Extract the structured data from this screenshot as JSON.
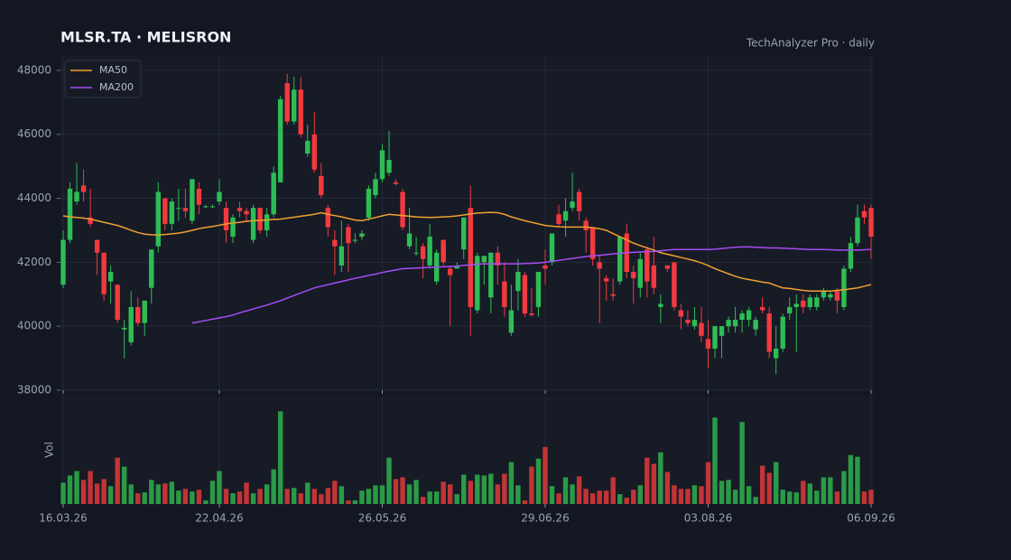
{
  "chart_data": {
    "type": "candlestick",
    "title": "MLSR.TA  ·  MELISRON",
    "subtitle": "TechAnalyzer Pro · daily",
    "volume_label": "Vol",
    "categories": [
      "16.03.26",
      null,
      null,
      null,
      null,
      null,
      null,
      null,
      null,
      null,
      null,
      null,
      null,
      null,
      null,
      null,
      null,
      null,
      null,
      null,
      null,
      null,
      null,
      "22.04.26",
      null,
      null,
      null,
      null,
      null,
      null,
      null,
      null,
      null,
      null,
      null,
      null,
      null,
      null,
      null,
      null,
      null,
      null,
      null,
      null,
      null,
      null,
      null,
      "26.05.26",
      null,
      null,
      null,
      null,
      null,
      null,
      null,
      null,
      null,
      null,
      null,
      null,
      null,
      null,
      null,
      null,
      null,
      null,
      null,
      null,
      null,
      null,
      null,
      "29.06.26",
      null,
      null,
      null,
      null,
      null,
      null,
      null,
      null,
      null,
      null,
      null,
      null,
      null,
      null,
      null,
      null,
      null,
      null,
      null,
      null,
      null,
      null,
      null,
      "03.08.26",
      null,
      null,
      null,
      null,
      null,
      null,
      null,
      null,
      null,
      null,
      null,
      null,
      null,
      null,
      null,
      null,
      null,
      null,
      null,
      null,
      null,
      null,
      null,
      "06.09.26"
    ],
    "open": [
      41300,
      42700,
      43900,
      44400,
      43400,
      42700,
      42300,
      41400,
      41300,
      39900,
      39500,
      40600,
      40100,
      41200,
      42500,
      44000,
      43200,
      43700,
      43700,
      43300,
      44300,
      43750,
      43750,
      43900,
      43700,
      42800,
      43700,
      43600,
      42700,
      43700,
      43000,
      43500,
      44500,
      47600,
      46400,
      47400,
      45400,
      46000,
      44700,
      43700,
      42700,
      41900,
      43100,
      42700,
      42800,
      43400,
      44100,
      44600,
      44800,
      44500,
      44200,
      42500,
      42300,
      42500,
      41900,
      41400,
      42700,
      41800,
      41800,
      42400,
      43700,
      40500,
      42000,
      40900,
      42300,
      41400,
      39800,
      41100,
      41600,
      40400,
      40600,
      41900,
      42000,
      43500,
      43300,
      43700,
      44200,
      43300,
      43100,
      42000,
      41500,
      41000,
      41400,
      42900,
      41700,
      41200,
      42400,
      41900,
      40600,
      41900,
      42000,
      40500,
      40200,
      40000,
      40100,
      39600,
      39300,
      39700,
      40000,
      40000,
      40200,
      40200,
      39900,
      40600,
      40400,
      39000,
      39300,
      40400,
      40600,
      40800,
      40600,
      40600,
      40900,
      40900,
      41100,
      40600,
      41800,
      42600,
      43600,
      43700
    ],
    "high": [
      43000,
      44500,
      45100,
      44900,
      44300,
      42700,
      42300,
      41900,
      41300,
      40200,
      41100,
      40900,
      40800,
      42400,
      44500,
      44000,
      44000,
      44300,
      44300,
      44600,
      44500,
      43800,
      43800,
      44600,
      43900,
      43500,
      43900,
      43700,
      43800,
      43700,
      43700,
      45000,
      47200,
      47900,
      47800,
      47800,
      46300,
      46700,
      45100,
      43800,
      43000,
      43300,
      43200,
      42900,
      43000,
      44400,
      44800,
      45700,
      46100,
      44600,
      44300,
      43700,
      42800,
      42600,
      43200,
      42400,
      42700,
      41900,
      42000,
      43400,
      44400,
      42300,
      42200,
      42300,
      42500,
      42000,
      41300,
      42100,
      41700,
      41200,
      41700,
      42400,
      42900,
      43800,
      44000,
      44800,
      44300,
      43400,
      43100,
      42200,
      41600,
      41500,
      42800,
      43200,
      41900,
      42300,
      42500,
      42800,
      41000,
      41900,
      42000,
      40700,
      40500,
      40600,
      40600,
      40200,
      40000,
      40000,
      40300,
      40600,
      40500,
      40600,
      40300,
      40900,
      40600,
      40000,
      40400,
      40900,
      41000,
      41000,
      41000,
      41000,
      41200,
      41100,
      41200,
      41900,
      42800,
      43800,
      43800,
      43800
    ],
    "low": [
      41200,
      42600,
      43800,
      43900,
      43100,
      41600,
      40800,
      40700,
      40100,
      39000,
      39400,
      40000,
      39700,
      40700,
      42300,
      43000,
      43000,
      43300,
      43400,
      43200,
      43500,
      43700,
      43700,
      43800,
      42600,
      42600,
      43400,
      43300,
      42600,
      42900,
      42800,
      43400,
      44500,
      46300,
      46300,
      45900,
      45300,
      44800,
      44000,
      42800,
      41600,
      41700,
      41700,
      42600,
      42700,
      43300,
      44000,
      44500,
      44700,
      44400,
      43000,
      42400,
      42200,
      41500,
      41800,
      41300,
      41900,
      40000,
      41800,
      42100,
      39700,
      40400,
      41300,
      40400,
      41300,
      40300,
      39700,
      40500,
      40300,
      40300,
      40300,
      41300,
      41900,
      43100,
      42800,
      43600,
      43300,
      42300,
      41900,
      40100,
      40800,
      40800,
      41300,
      41500,
      40700,
      40900,
      40900,
      41000,
      40100,
      41700,
      40500,
      39900,
      40000,
      39900,
      39500,
      38700,
      39000,
      39000,
      39800,
      39800,
      39800,
      40000,
      39700,
      40400,
      39000,
      38500,
      39200,
      40200,
      39200,
      40400,
      40500,
      40500,
      40800,
      40800,
      40400,
      40500,
      41700,
      42500,
      43200,
      42100
    ],
    "close": [
      42700,
      44300,
      44200,
      44200,
      43200,
      42300,
      41000,
      41700,
      40200,
      39950,
      40600,
      40100,
      40800,
      42400,
      44200,
      43200,
      43900,
      43700,
      43600,
      44600,
      43800,
      43750,
      43750,
      44200,
      43000,
      43400,
      43600,
      43500,
      43700,
      43000,
      43500,
      44800,
      47100,
      46400,
      47400,
      46000,
      45800,
      44900,
      44100,
      43100,
      42500,
      42500,
      42600,
      42700,
      42900,
      44300,
      44600,
      45500,
      45200,
      44450,
      43100,
      42900,
      42300,
      42100,
      42800,
      42300,
      42000,
      41600,
      41900,
      43400,
      40600,
      42200,
      42200,
      42300,
      41900,
      40600,
      40500,
      41700,
      40400,
      40350,
      41700,
      41800,
      42900,
      43200,
      43600,
      43900,
      43600,
      43000,
      42100,
      41800,
      41400,
      40950,
      42800,
      41700,
      41500,
      42100,
      41400,
      41200,
      40700,
      41800,
      40600,
      40300,
      40100,
      40200,
      39700,
      39300,
      40000,
      40000,
      40200,
      40200,
      40400,
      40500,
      40200,
      40500,
      39200,
      39300,
      40300,
      40600,
      40700,
      40600,
      40900,
      40900,
      41100,
      41000,
      40800,
      41800,
      42600,
      43400,
      43400,
      42800
    ],
    "volume": [
      24,
      32,
      37,
      27,
      37,
      23,
      28,
      20,
      52,
      42,
      22,
      12,
      13,
      27,
      22,
      23,
      25,
      15,
      17,
      14,
      16,
      4,
      26,
      37,
      17,
      12,
      14,
      24,
      12,
      17,
      22,
      39,
      104,
      17,
      18,
      12,
      24,
      17,
      11,
      18,
      26,
      20,
      4,
      4,
      15,
      17,
      21,
      21,
      52,
      28,
      30,
      22,
      27,
      8,
      14,
      14,
      25,
      22,
      11,
      33,
      26,
      33,
      32,
      34,
      22,
      34,
      47,
      21,
      4,
      42,
      51,
      64,
      20,
      12,
      30,
      22,
      31,
      17,
      12,
      15,
      15,
      30,
      11,
      7,
      16,
      21,
      52,
      45,
      58,
      36,
      21,
      17,
      17,
      21,
      20,
      47,
      97,
      26,
      27,
      16,
      92,
      20,
      8,
      43,
      35,
      47,
      16,
      14,
      13,
      26,
      23,
      15,
      30,
      30,
      14,
      37,
      55,
      53,
      14,
      16
    ],
    "series": [
      {
        "name": "MA50",
        "color": "#f0a030",
        "values": [
          43450,
          43420,
          43400,
          43380,
          43350,
          43300,
          43250,
          43200,
          43150,
          43080,
          43000,
          42930,
          42880,
          42860,
          42850,
          42870,
          42890,
          42910,
          42950,
          43000,
          43050,
          43090,
          43120,
          43160,
          43200,
          43230,
          43250,
          43280,
          43300,
          43310,
          43320,
          43340,
          43350,
          43380,
          43410,
          43440,
          43470,
          43500,
          43550,
          43500,
          43460,
          43420,
          43370,
          43320,
          43300,
          43350,
          43400,
          43450,
          43500,
          43480,
          43460,
          43440,
          43420,
          43410,
          43400,
          43410,
          43420,
          43430,
          43450,
          43480,
          43510,
          43540,
          43550,
          43560,
          43550,
          43500,
          43420,
          43360,
          43300,
          43250,
          43200,
          43150,
          43130,
          43110,
          43100,
          43100,
          43100,
          43100,
          43080,
          43050,
          43000,
          42900,
          42800,
          42700,
          42600,
          42520,
          42450,
          42380,
          42300,
          42250,
          42200,
          42150,
          42100,
          42050,
          41980,
          41900,
          41800,
          41720,
          41640,
          41560,
          41500,
          41460,
          41420,
          41380,
          41350,
          41270,
          41200,
          41180,
          41150,
          41120,
          41100,
          41100,
          41100,
          41100,
          41120,
          41140,
          41170,
          41200,
          41250,
          41300
        ]
      },
      {
        "name": "MA200",
        "color": "#a64df5",
        "values": [
          null,
          null,
          null,
          null,
          null,
          null,
          null,
          null,
          null,
          null,
          null,
          null,
          null,
          null,
          null,
          null,
          null,
          null,
          null,
          40100,
          40140,
          40180,
          40220,
          40260,
          40300,
          40350,
          40420,
          40480,
          40540,
          40600,
          40660,
          40730,
          40800,
          40880,
          40960,
          41040,
          41120,
          41200,
          41250,
          41300,
          41350,
          41400,
          41450,
          41500,
          41540,
          41590,
          41630,
          41680,
          41720,
          41760,
          41800,
          41810,
          41820,
          41830,
          41840,
          41850,
          41860,
          41870,
          41880,
          41900,
          41920,
          41940,
          41950,
          41950,
          41950,
          41950,
          41950,
          41950,
          41960,
          41970,
          41980,
          42000,
          42030,
          42060,
          42090,
          42120,
          42150,
          42180,
          42200,
          42220,
          42240,
          42260,
          42280,
          42300,
          42310,
          42320,
          42330,
          42340,
          42360,
          42380,
          42400,
          42400,
          42400,
          42400,
          42400,
          42400,
          42410,
          42430,
          42450,
          42470,
          42480,
          42480,
          42470,
          42460,
          42450,
          42450,
          42440,
          42430,
          42420,
          42410,
          42400,
          42400,
          42400,
          42390,
          42380,
          42380,
          42380,
          42380,
          42390,
          42400
        ]
      }
    ],
    "up_color": "#2ebd55",
    "down_color": "#f23a3f",
    "up_volume_color": "#2a9a47",
    "down_volume_color": "#c23436",
    "ylim": [
      38000,
      48450
    ],
    "yticks": [
      38000,
      40000,
      42000,
      44000,
      46000,
      48000
    ],
    "grid": true,
    "legend": "upper left"
  }
}
